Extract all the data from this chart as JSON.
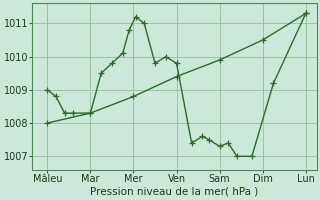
{
  "xlabel": "Pression niveau de la mer( hPa )",
  "background_color": "#cce8d8",
  "line_color": "#2d6b2d",
  "grid_color": "#99c4aa",
  "ylim": [
    1006.6,
    1011.6
  ],
  "xlim": [
    -0.2,
    13.0
  ],
  "xtick_labels": [
    "Mâleu",
    "Mar",
    "Mer",
    "Ven",
    "Sam",
    "Dim",
    "Lun"
  ],
  "xtick_positions": [
    0.5,
    2.5,
    4.5,
    6.5,
    8.5,
    10.5,
    12.5
  ],
  "yticks": [
    1007,
    1008,
    1009,
    1010,
    1011
  ],
  "series1_x": [
    0.5,
    0.9,
    1.3,
    1.7,
    2.5,
    3.0,
    3.5,
    4.0,
    4.3,
    4.6,
    5.0,
    5.5,
    6.0,
    6.5,
    7.2,
    7.7,
    8.0,
    8.5,
    8.9,
    9.3,
    10.0,
    11.0,
    12.5
  ],
  "series1_y": [
    1009.0,
    1008.8,
    1008.3,
    1008.3,
    1008.3,
    1009.5,
    1009.8,
    1010.1,
    1010.8,
    1011.2,
    1011.0,
    1009.8,
    1010.0,
    1009.8,
    1007.4,
    1007.6,
    1007.5,
    1007.3,
    1007.4,
    1007.0,
    1007.0,
    1009.2,
    1011.3
  ],
  "series2_x": [
    0.5,
    2.5,
    4.5,
    6.5,
    8.5,
    10.5,
    12.5
  ],
  "series2_y": [
    1008.0,
    1008.3,
    1008.8,
    1009.4,
    1009.9,
    1010.5,
    1011.3
  ],
  "xlabel_fontsize": 7.5,
  "tick_fontsize": 7,
  "line_width": 1.0,
  "marker_size": 4
}
